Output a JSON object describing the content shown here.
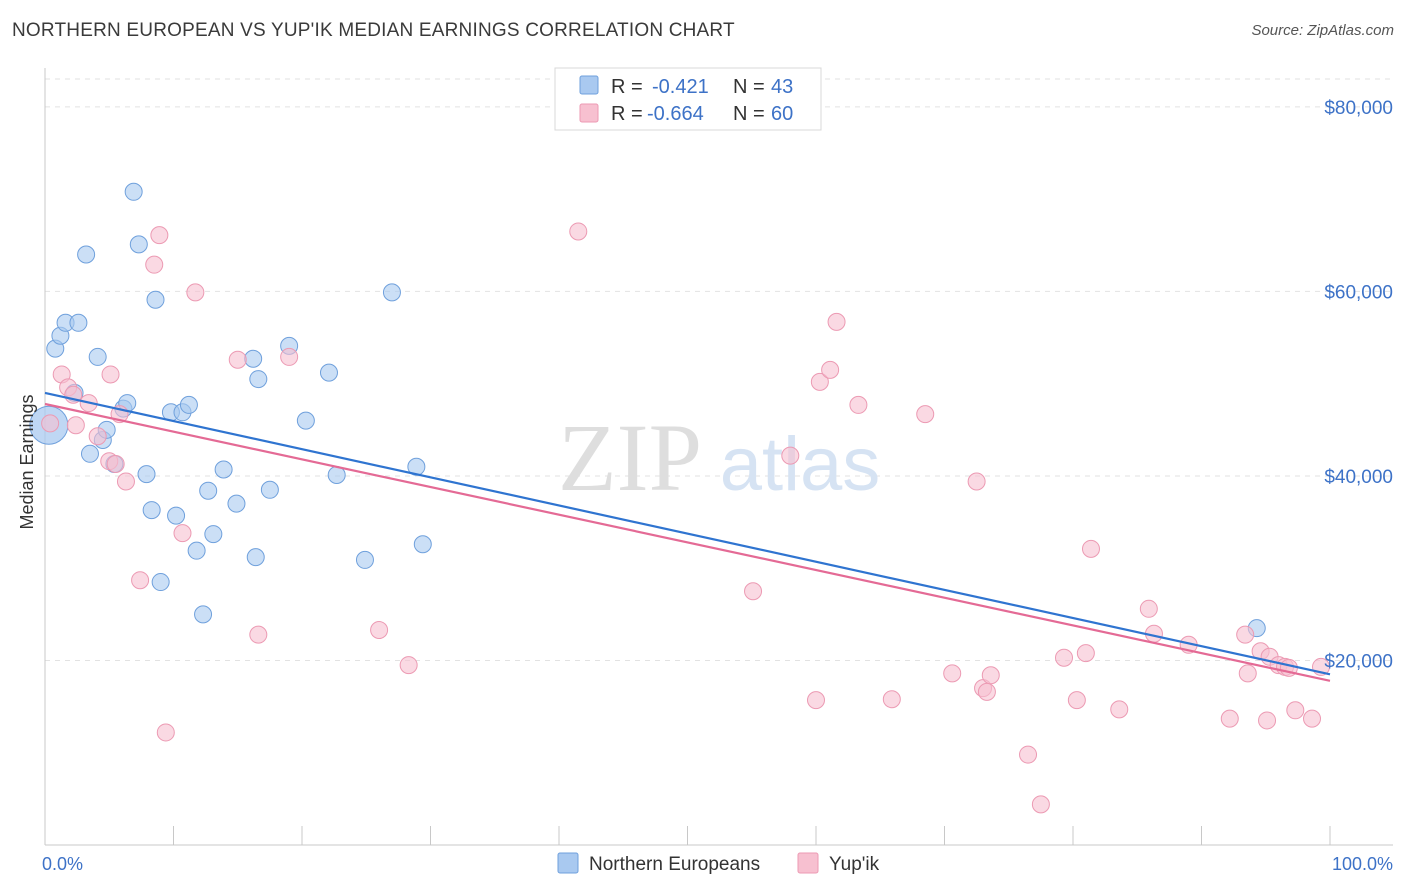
{
  "header": {
    "title": "NORTHERN EUROPEAN VS YUP'IK MEDIAN EARNINGS CORRELATION CHART",
    "source": "Source: ZipAtlas.com"
  },
  "watermark": {
    "zip": "ZIP",
    "atlas": "atlas"
  },
  "chart_data": {
    "type": "scatter",
    "xlabel": "",
    "ylabel": "Median Earnings",
    "xlim": [
      0,
      100
    ],
    "ylim": [
      0,
      84000
    ],
    "x_tick_labels": {
      "min": "0.0%",
      "max": "100.0%"
    },
    "y_ticks": [
      {
        "value": 20000,
        "label": "$20,000"
      },
      {
        "value": 40000,
        "label": "$40,000"
      },
      {
        "value": 60000,
        "label": "$60,000"
      },
      {
        "value": 80000,
        "label": "$80,000"
      }
    ],
    "grid": true,
    "legend_position": "top-center",
    "legend_stats": [
      {
        "r_label": "R =",
        "r": "-0.421",
        "n_label": "N =",
        "n": "43"
      },
      {
        "r_label": "R =",
        "r": "-0.664",
        "n_label": "N =",
        "n": "60"
      }
    ],
    "series": [
      {
        "name": "Northern Europeans",
        "color": "#a9c9f0",
        "stroke": "#6fa0dc",
        "line_color": "#2f74d0",
        "trend": {
          "x": [
            0,
            100
          ],
          "y": [
            49000,
            18500
          ]
        },
        "points": [
          [
            0.3,
            45500,
            "big"
          ],
          [
            0.8,
            53800
          ],
          [
            1.2,
            55200
          ],
          [
            1.6,
            56600
          ],
          [
            2.3,
            49000
          ],
          [
            2.6,
            56600
          ],
          [
            3.2,
            64000
          ],
          [
            3.5,
            42400
          ],
          [
            4.1,
            52900
          ],
          [
            4.5,
            43900
          ],
          [
            4.8,
            45000
          ],
          [
            5.4,
            41300
          ],
          [
            6.1,
            47300
          ],
          [
            6.4,
            47900
          ],
          [
            6.9,
            70800
          ],
          [
            7.3,
            65100
          ],
          [
            7.9,
            40200
          ],
          [
            8.3,
            36300
          ],
          [
            8.6,
            59100
          ],
          [
            9.0,
            28500
          ],
          [
            9.8,
            46900
          ],
          [
            10.2,
            35700
          ],
          [
            10.7,
            46900
          ],
          [
            11.2,
            47700
          ],
          [
            11.8,
            31900
          ],
          [
            12.3,
            25000
          ],
          [
            12.7,
            38400
          ],
          [
            13.1,
            33700
          ],
          [
            13.9,
            40700
          ],
          [
            14.9,
            37000
          ],
          [
            16.2,
            52700
          ],
          [
            16.4,
            31200
          ],
          [
            16.6,
            50500
          ],
          [
            17.5,
            38500
          ],
          [
            19.0,
            54100
          ],
          [
            20.3,
            46000
          ],
          [
            22.1,
            51200
          ],
          [
            22.7,
            40100
          ],
          [
            24.9,
            30900
          ],
          [
            27.0,
            59900
          ],
          [
            28.9,
            41000
          ],
          [
            29.4,
            32600
          ],
          [
            94.3,
            23500
          ]
        ]
      },
      {
        "name": "Yup'ik",
        "color": "#f7c0d0",
        "stroke": "#ec9ab3",
        "line_color": "#e46a95",
        "trend": {
          "x": [
            0,
            100
          ],
          "y": [
            47800,
            17800
          ]
        },
        "points": [
          [
            0.4,
            45700
          ],
          [
            1.3,
            51000
          ],
          [
            1.8,
            49600
          ],
          [
            2.2,
            48800
          ],
          [
            2.4,
            45500
          ],
          [
            3.4,
            47900
          ],
          [
            4.1,
            44300
          ],
          [
            5.0,
            41600
          ],
          [
            5.1,
            51000
          ],
          [
            5.5,
            41300
          ],
          [
            5.8,
            46700
          ],
          [
            6.3,
            39400
          ],
          [
            7.4,
            28700
          ],
          [
            8.5,
            62900
          ],
          [
            8.9,
            66100
          ],
          [
            9.4,
            12200
          ],
          [
            10.7,
            33800
          ],
          [
            11.7,
            59900
          ],
          [
            15.0,
            52600
          ],
          [
            16.6,
            22800
          ],
          [
            19.0,
            52900
          ],
          [
            26.0,
            23300
          ],
          [
            28.3,
            19500
          ],
          [
            41.5,
            66500
          ],
          [
            55.1,
            27500
          ],
          [
            58.0,
            42200
          ],
          [
            60.0,
            15700
          ],
          [
            60.3,
            50200
          ],
          [
            61.1,
            51500
          ],
          [
            61.6,
            56700
          ],
          [
            63.3,
            47700
          ],
          [
            65.9,
            15800
          ],
          [
            68.5,
            46700
          ],
          [
            70.6,
            18600
          ],
          [
            72.5,
            39400
          ],
          [
            73.0,
            17000
          ],
          [
            73.3,
            16600
          ],
          [
            73.6,
            18400
          ],
          [
            76.5,
            9800
          ],
          [
            77.5,
            4400
          ],
          [
            79.3,
            20300
          ],
          [
            80.3,
            15700
          ],
          [
            81.0,
            20800
          ],
          [
            81.4,
            32100
          ],
          [
            83.6,
            14700
          ],
          [
            85.9,
            25600
          ],
          [
            86.3,
            22900
          ],
          [
            89.0,
            21700
          ],
          [
            92.2,
            13700
          ],
          [
            93.4,
            22800
          ],
          [
            93.6,
            18600
          ],
          [
            94.6,
            21000
          ],
          [
            95.1,
            13500
          ],
          [
            95.3,
            20400
          ],
          [
            96.0,
            19500
          ],
          [
            96.5,
            19300
          ],
          [
            96.8,
            19200
          ],
          [
            97.3,
            14600
          ],
          [
            98.6,
            13700
          ],
          [
            99.3,
            19300
          ]
        ]
      }
    ]
  }
}
